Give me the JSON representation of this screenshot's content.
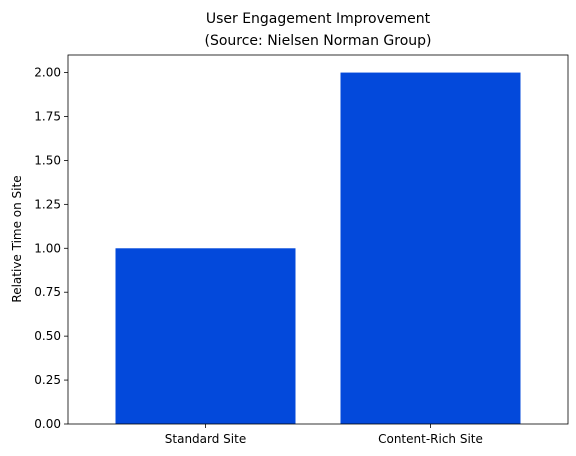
{
  "chart_data": {
    "type": "bar",
    "title": "User Engagement Improvement",
    "subtitle": "(Source: Nielsen Norman Group)",
    "xlabel": "",
    "ylabel": "Relative Time on Site",
    "categories": [
      "Standard Site",
      "Content-Rich Site"
    ],
    "values": [
      1.0,
      2.0
    ],
    "ylim": [
      0,
      2.1
    ],
    "yticks": [
      "0.00",
      "0.25",
      "0.50",
      "0.75",
      "1.00",
      "1.25",
      "1.50",
      "1.75",
      "2.00"
    ],
    "bar_color": "#0349db",
    "grid": false,
    "legend": "none"
  }
}
